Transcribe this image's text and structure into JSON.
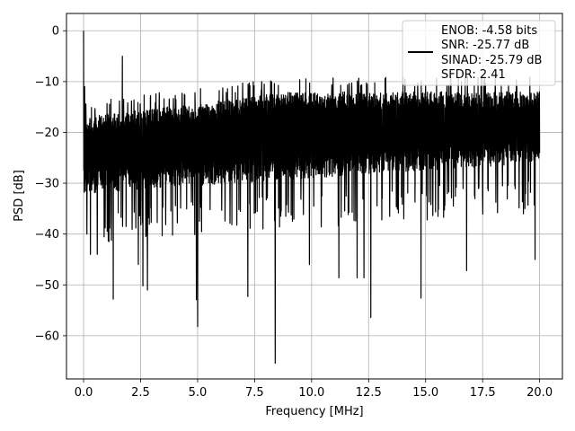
{
  "chart_data": {
    "type": "line",
    "xlabel": "Frequency [MHz]",
    "ylabel": "PSD [dB]",
    "xlim": [
      -0.75,
      21.0
    ],
    "ylim": [
      -68.5,
      3.4
    ],
    "xticks": [
      0.0,
      2.5,
      5.0,
      7.5,
      10.0,
      12.5,
      15.0,
      17.5,
      20.0
    ],
    "xtick_labels": [
      "0.0",
      "2.5",
      "5.0",
      "7.5",
      "10.0",
      "12.5",
      "15.0",
      "17.5",
      "20.0"
    ],
    "yticks": [
      0,
      -10,
      -20,
      -30,
      -40,
      -50,
      -60
    ],
    "ytick_labels": [
      "0",
      "−10",
      "−20",
      "−30",
      "−40",
      "−50",
      "−60"
    ],
    "grid": true,
    "legend_position": "upper-right",
    "series": [
      {
        "legend_lines": [
          "ENOB: -4.58 bits",
          "SNR: -25.77 dB",
          "SINAD: -25.79 dB",
          "SFDR: 2.41"
        ],
        "color": "#000000",
        "x_range": [
          0.0,
          20.0
        ],
        "noise_band_upper": [
          -17,
          -12
        ],
        "noise_band_lower": [
          -32,
          -26
        ],
        "peaks": [
          {
            "x": 0.0,
            "y": 0.0
          },
          {
            "x": 1.7,
            "y": -5.0
          },
          {
            "x": 0.05,
            "y": -11.0
          }
        ],
        "dips": [
          {
            "x": 0.15,
            "y": -40.0
          },
          {
            "x": 0.3,
            "y": -44.0
          },
          {
            "x": 0.6,
            "y": -44.0
          },
          {
            "x": 1.3,
            "y": -52.8
          },
          {
            "x": 2.4,
            "y": -46.0
          },
          {
            "x": 2.6,
            "y": -50.2
          },
          {
            "x": 2.8,
            "y": -51.0
          },
          {
            "x": 4.95,
            "y": -52.9
          },
          {
            "x": 5.0,
            "y": -58.2
          },
          {
            "x": 7.2,
            "y": -52.3
          },
          {
            "x": 8.4,
            "y": -65.4
          },
          {
            "x": 9.9,
            "y": -46.0
          },
          {
            "x": 11.2,
            "y": -48.6
          },
          {
            "x": 12.0,
            "y": -48.6
          },
          {
            "x": 12.3,
            "y": -48.6
          },
          {
            "x": 12.6,
            "y": -56.4
          },
          {
            "x": 14.8,
            "y": -52.6
          },
          {
            "x": 16.8,
            "y": -47.2
          },
          {
            "x": 19.8,
            "y": -45.0
          }
        ]
      }
    ]
  }
}
